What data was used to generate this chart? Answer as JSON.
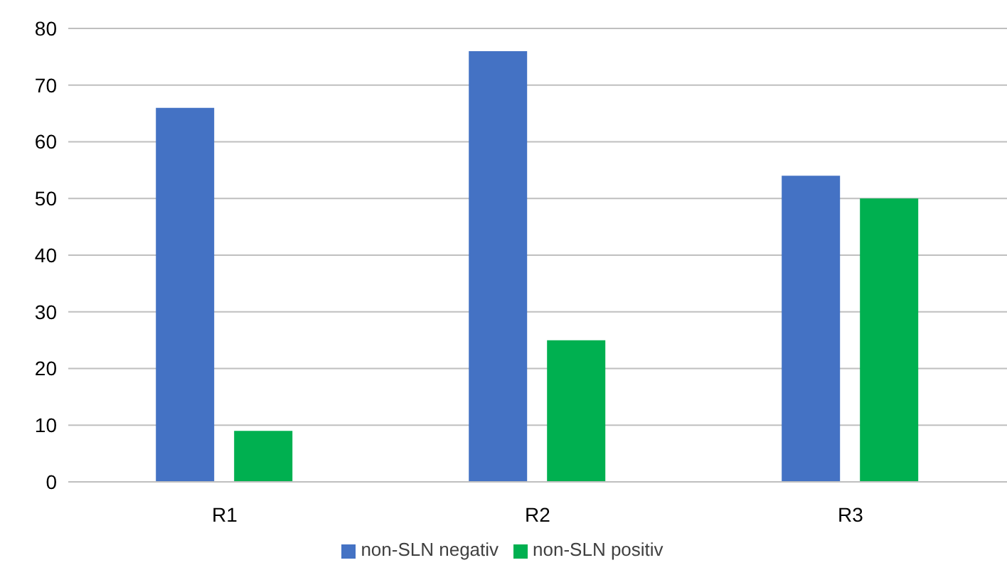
{
  "chart_data": {
    "type": "bar",
    "categories": [
      "R1",
      "R2",
      "R3"
    ],
    "series": [
      {
        "name": "non-SLN negativ",
        "color": "#4472c4",
        "values": [
          66,
          76,
          54
        ]
      },
      {
        "name": "non-SLN positiv",
        "color": "#00b050",
        "values": [
          9,
          25,
          50
        ]
      }
    ],
    "ylim": [
      0,
      80
    ],
    "yticks": [
      0,
      10,
      20,
      30,
      40,
      50,
      60,
      70,
      80
    ],
    "grid": "y",
    "legend": "bottom"
  }
}
